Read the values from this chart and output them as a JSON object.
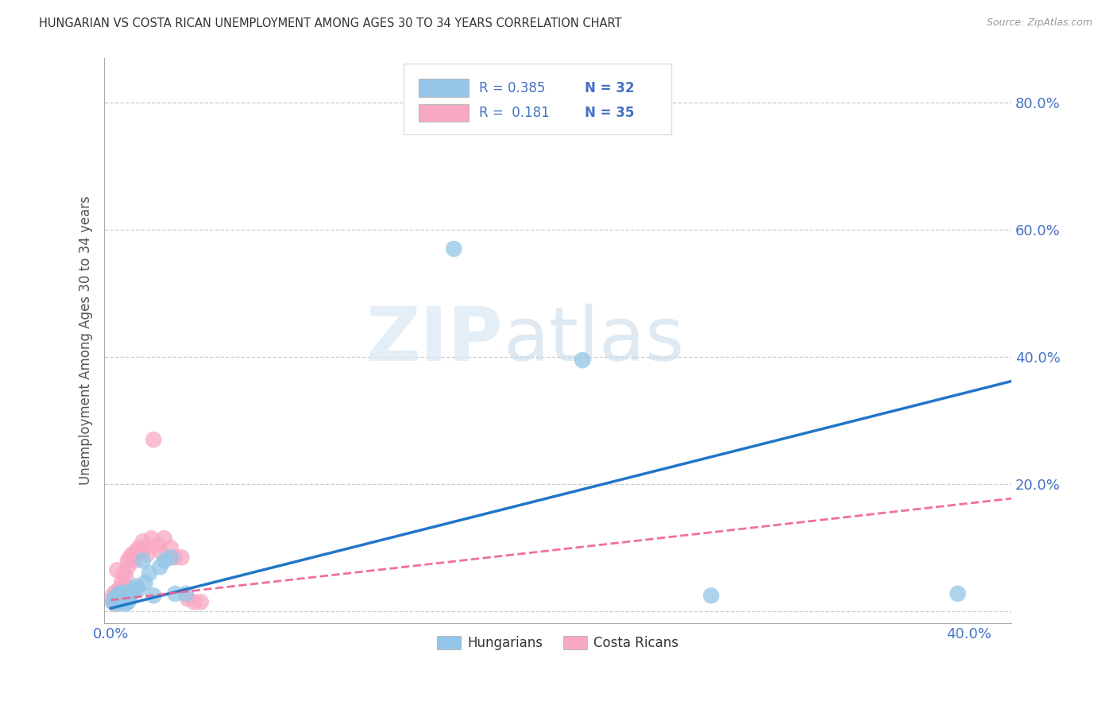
{
  "title": "HUNGARIAN VS COSTA RICAN UNEMPLOYMENT AMONG AGES 30 TO 34 YEARS CORRELATION CHART",
  "source": "Source: ZipAtlas.com",
  "ylabel": "Unemployment Among Ages 30 to 34 years",
  "R_hungarian": 0.385,
  "N_hungarian": 32,
  "R_costarican": 0.181,
  "N_costarican": 35,
  "hungarian_color": "#93c6e8",
  "costarican_color": "#f9a8c4",
  "hungarian_line_color": "#2176c7",
  "costarican_line_color": "#f06090",
  "background_color": "#ffffff",
  "watermark_zip": "ZIP",
  "watermark_atlas": "atlas",
  "hun_intercept": 0.005,
  "hun_slope": 0.85,
  "cos_intercept": 0.018,
  "cos_slope": 0.38,
  "hungarian_x": [
    0.001,
    0.002,
    0.002,
    0.003,
    0.003,
    0.004,
    0.004,
    0.005,
    0.005,
    0.006,
    0.006,
    0.007,
    0.007,
    0.008,
    0.009,
    0.01,
    0.011,
    0.012,
    0.013,
    0.015,
    0.016,
    0.018,
    0.02,
    0.023,
    0.025,
    0.028,
    0.03,
    0.035,
    0.16,
    0.22,
    0.28,
    0.395
  ],
  "hungarian_y": [
    0.015,
    0.018,
    0.022,
    0.012,
    0.025,
    0.02,
    0.028,
    0.015,
    0.022,
    0.018,
    0.03,
    0.025,
    0.012,
    0.015,
    0.02,
    0.03,
    0.035,
    0.04,
    0.035,
    0.08,
    0.045,
    0.06,
    0.025,
    0.07,
    0.08,
    0.085,
    0.028,
    0.028,
    0.57,
    0.395,
    0.025,
    0.028
  ],
  "costarican_x": [
    0.001,
    0.001,
    0.002,
    0.002,
    0.003,
    0.003,
    0.004,
    0.004,
    0.005,
    0.005,
    0.006,
    0.006,
    0.007,
    0.008,
    0.008,
    0.009,
    0.01,
    0.011,
    0.012,
    0.013,
    0.014,
    0.015,
    0.016,
    0.017,
    0.019,
    0.02,
    0.022,
    0.023,
    0.025,
    0.028,
    0.03,
    0.033,
    0.036,
    0.039,
    0.042
  ],
  "costarican_y": [
    0.015,
    0.025,
    0.012,
    0.03,
    0.02,
    0.065,
    0.025,
    0.035,
    0.03,
    0.045,
    0.04,
    0.06,
    0.055,
    0.07,
    0.08,
    0.085,
    0.09,
    0.08,
    0.095,
    0.1,
    0.095,
    0.11,
    0.1,
    0.09,
    0.115,
    0.27,
    0.105,
    0.095,
    0.115,
    0.1,
    0.085,
    0.085,
    0.02,
    0.015,
    0.015
  ],
  "xlim": [
    -0.003,
    0.42
  ],
  "ylim": [
    -0.018,
    0.87
  ],
  "ytick_positions": [
    0.0,
    0.2,
    0.4,
    0.6,
    0.8
  ],
  "ytick_labels": [
    "",
    "20.0%",
    "40.0%",
    "60.0%",
    "80.0%"
  ],
  "xtick_left_label": "0.0%",
  "xtick_right_label": "40.0%",
  "xtick_left_pos": 0.0,
  "xtick_right_pos": 0.4
}
